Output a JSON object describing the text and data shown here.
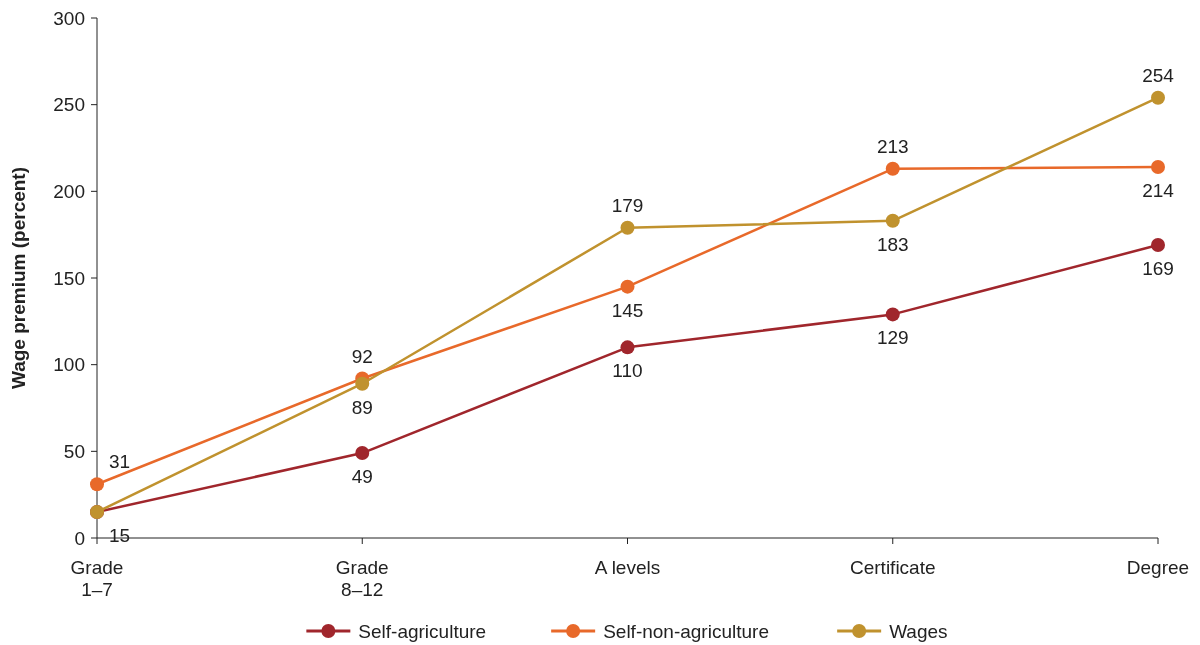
{
  "chart_data": {
    "type": "line",
    "ylabel": "Wage premium (percent)",
    "categories": [
      "Grade\n1–7",
      "Grade\n8–12",
      "A levels",
      "Certificate",
      "Degree"
    ],
    "ylim": [
      0,
      300
    ],
    "yticks": [
      0,
      50,
      100,
      150,
      200,
      250,
      300
    ],
    "grid": false,
    "legend": "bottom",
    "marker": "circle",
    "line_style": "solid",
    "series": [
      {
        "name": "Self-agriculture",
        "color": "#a0262c",
        "values": [
          15,
          49,
          110,
          129,
          169
        ],
        "value_labels": [
          "15",
          "49",
          "110",
          "129",
          "169"
        ]
      },
      {
        "name": "Self-non-agriculture",
        "color": "#e8692a",
        "values": [
          31,
          92,
          145,
          213,
          214
        ],
        "value_labels": [
          "31",
          "92",
          "145",
          "213",
          "214"
        ]
      },
      {
        "name": "Wages",
        "color": "#c0922e",
        "values": [
          15,
          89,
          179,
          183,
          254
        ],
        "value_labels": [
          null,
          "89",
          "179",
          "183",
          "254"
        ]
      }
    ]
  }
}
